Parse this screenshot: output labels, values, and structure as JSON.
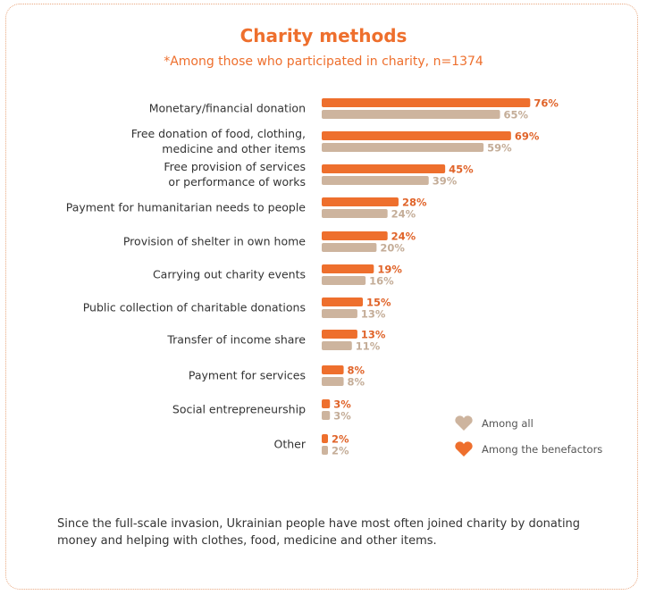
{
  "chart_data": {
    "type": "bar",
    "orientation": "horizontal",
    "title": "Charity methods",
    "subtitle": "*Among those who participated in charity, n=1374",
    "categories": [
      [
        "Monetary/financial donation"
      ],
      [
        "Free donation of food, clothing,",
        "medicine and other items"
      ],
      [
        "Free provision of services",
        "or performance of works"
      ],
      [
        "Payment for humanitarian needs to people"
      ],
      [
        "Provision of shelter in own home"
      ],
      [
        "Carrying out charity events"
      ],
      [
        "Public collection of charitable donations"
      ],
      [
        "Transfer of income share"
      ],
      [
        "Payment for services"
      ],
      [
        "Social entrepreneurship"
      ],
      [
        "Other"
      ]
    ],
    "series": [
      {
        "name": "Among the benefactors",
        "color": "#ee6f2d",
        "values": [
          76,
          69,
          45,
          28,
          24,
          19,
          15,
          13,
          8,
          3,
          2
        ]
      },
      {
        "name": "Among all",
        "color": "#cdb49e",
        "values": [
          65,
          59,
          39,
          24,
          20,
          16,
          13,
          11,
          8,
          3,
          2
        ]
      }
    ],
    "unit": "%",
    "legend_position": "bottom-right",
    "grid": false
  },
  "note": "Since the full-scale invasion, Ukrainian people have most often joined charity by donating money and helping with clothes, food, medicine and other items."
}
